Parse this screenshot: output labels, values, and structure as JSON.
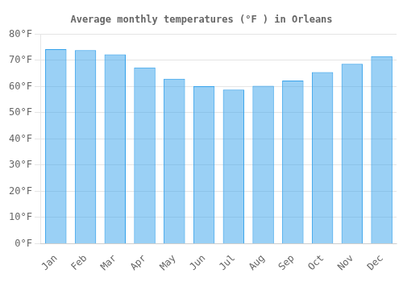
{
  "chart_data": {
    "type": "bar",
    "title": "Average monthly temperatures (°F ) in Orleans",
    "categories": [
      "Jan",
      "Feb",
      "Mar",
      "Apr",
      "May",
      "Jun",
      "Jul",
      "Aug",
      "Sep",
      "Oct",
      "Nov",
      "Dec"
    ],
    "values": [
      74.3,
      73.9,
      72.3,
      67.3,
      63.0,
      60.1,
      58.8,
      60.3,
      62.3,
      65.5,
      68.7,
      71.6
    ],
    "ylim": [
      0,
      80
    ],
    "yticks": [
      {
        "value": 0,
        "label": "0°F"
      },
      {
        "value": 10,
        "label": "10°F"
      },
      {
        "value": 20,
        "label": "20°F"
      },
      {
        "value": 30,
        "label": "30°F"
      },
      {
        "value": 40,
        "label": "40°F"
      },
      {
        "value": 50,
        "label": "50°F"
      },
      {
        "value": 60,
        "label": "60°F"
      },
      {
        "value": 70,
        "label": "70°F"
      },
      {
        "value": 80,
        "label": "80°F"
      }
    ],
    "grid": true
  }
}
